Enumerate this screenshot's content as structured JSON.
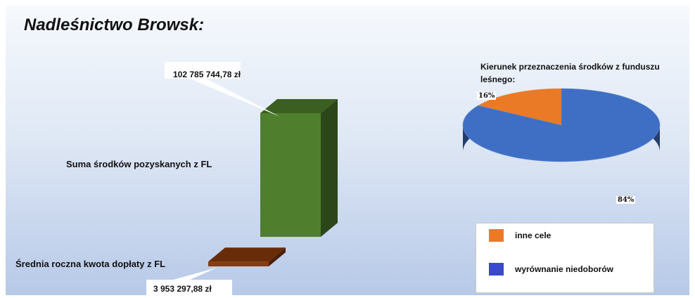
{
  "title": "Nadleśnictwo Browsk:",
  "chart_data": [
    {
      "type": "bar",
      "orientation": "horizontal",
      "categories": [
        "Suma środków pozyskanych z FL",
        "Średnia roczna kwota dopłaty z FL"
      ],
      "values": [
        102785744.78,
        3953297.88
      ],
      "value_labels": [
        "102 785 744,78 zł",
        "3 953 297,88 zł"
      ],
      "colors": [
        "#4f7f2c",
        "#8a3a0c"
      ]
    },
    {
      "type": "pie",
      "title": "Kierunek przeznaczenia środków z funduszu leśnego:",
      "series": [
        {
          "name": "inne cele",
          "value": 16,
          "label": "16%",
          "color": "#ea7a26"
        },
        {
          "name": "wyrównanie niedoborów",
          "value": 84,
          "label": "84%",
          "color": "#3f6fc4"
        }
      ],
      "legend": "bottom-right"
    }
  ]
}
